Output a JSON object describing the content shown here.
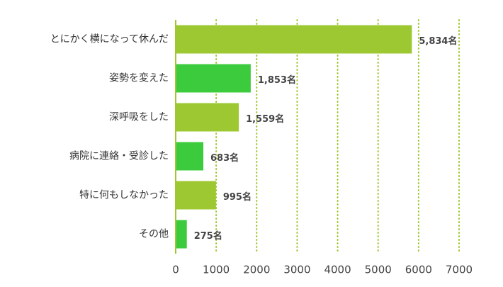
{
  "chart_data": {
    "type": "bar",
    "orientation": "horizontal",
    "categories": [
      "とにかく横になって休んだ",
      "姿勢を変えた",
      "深呼吸をした",
      "病院に連絡・受診した",
      "特に何もしなかった",
      "その他"
    ],
    "values": [
      5834,
      1853,
      1559,
      683,
      995,
      275
    ],
    "value_labels": [
      "5,834名",
      "1,853名",
      "1,559名",
      "683名",
      "995名",
      "275名"
    ],
    "colors": [
      "#9dc832",
      "#3ccb3c",
      "#9dc832",
      "#3ccb3c",
      "#9dc832",
      "#3ccb3c"
    ],
    "xlim": [
      0,
      7000
    ],
    "xticks": [
      0,
      1000,
      2000,
      3000,
      4000,
      5000,
      6000,
      7000
    ],
    "grid": true,
    "grid_color": "#9dc832"
  }
}
